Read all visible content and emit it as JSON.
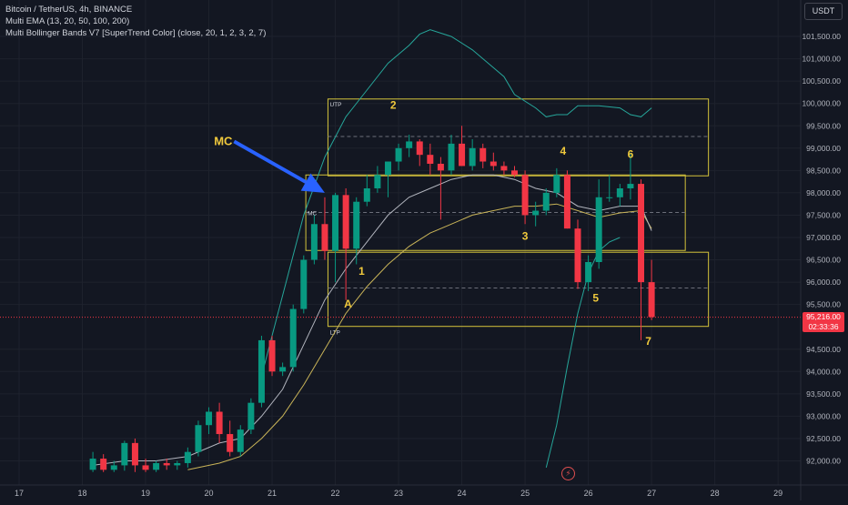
{
  "legend": {
    "symbol": "Bitcoin / TetherUS, 4h, BINANCE",
    "ema": "Multi EMA (13, 20, 50, 100, 200)",
    "bb": "Multi Bollinger Bands V7 [SuperTrend Color] (close, 20, 1, 2, 3, 2, 7)"
  },
  "currency_button": "USDT",
  "last_price": {
    "price": "95,216.00",
    "countdown": "02:33:36"
  },
  "colors": {
    "background": "#131722",
    "grid": "#1e222d",
    "up": "#089981",
    "down": "#f23645",
    "box": "#d4c33b",
    "label": "#f0c93c",
    "arrow": "#2962ff",
    "axis_text": "#b2b5be",
    "ema_fast": "#b2b5be",
    "ema_slow": "#c9b458",
    "bb": "#26a69a"
  },
  "chart_data": {
    "type": "candlestick",
    "interval": "4h",
    "x_ticks": [
      {
        "label": "17",
        "t": 0.0
      },
      {
        "label": "18",
        "t": 6.0
      },
      {
        "label": "19",
        "t": 12.0
      },
      {
        "label": "20",
        "t": 18.0
      },
      {
        "label": "21",
        "t": 24.0
      },
      {
        "label": "22",
        "t": 30.0
      },
      {
        "label": "23",
        "t": 36.0
      },
      {
        "label": "24",
        "t": 42.0
      },
      {
        "label": "25",
        "t": 48.0
      },
      {
        "label": "26",
        "t": 54.0
      },
      {
        "label": "27",
        "t": 60.0
      },
      {
        "label": "28",
        "t": 66.0
      },
      {
        "label": "29",
        "t": 72.0
      }
    ],
    "y_ticks": [
      "92,000.00",
      "92,500.00",
      "93,000.00",
      "93,500.00",
      "94,000.00",
      "94,500.00",
      "95,500.00",
      "96,000.00",
      "96,500.00",
      "97,000.00",
      "97,500.00",
      "98,000.00",
      "98,500.00",
      "99,000.00",
      "99,500.00",
      "100,000.00",
      "100,500.00",
      "101,000.00",
      "101,500.00"
    ],
    "y_range": [
      91750,
      102100
    ],
    "candles": [
      {
        "t": 7.0,
        "o": 91800,
        "h": 92200,
        "l": 91750,
        "c": 92050
      },
      {
        "t": 8.0,
        "o": 92050,
        "h": 92150,
        "l": 91750,
        "c": 91800
      },
      {
        "t": 9.0,
        "o": 91800,
        "h": 92000,
        "l": 91750,
        "c": 91900
      },
      {
        "t": 10.0,
        "o": 91900,
        "h": 92450,
        "l": 91780,
        "c": 92400
      },
      {
        "t": 11.0,
        "o": 92400,
        "h": 92500,
        "l": 91750,
        "c": 91900
      },
      {
        "t": 12.0,
        "o": 91900,
        "h": 92050,
        "l": 91750,
        "c": 91800
      },
      {
        "t": 13.0,
        "o": 91800,
        "h": 92000,
        "l": 91750,
        "c": 91950
      },
      {
        "t": 14.0,
        "o": 91950,
        "h": 92050,
        "l": 91800,
        "c": 91900
      },
      {
        "t": 15.0,
        "o": 91900,
        "h": 92000,
        "l": 91800,
        "c": 91950
      },
      {
        "t": 16.0,
        "o": 91950,
        "h": 92300,
        "l": 91850,
        "c": 92200
      },
      {
        "t": 17.0,
        "o": 92200,
        "h": 92900,
        "l": 92100,
        "c": 92800
      },
      {
        "t": 18.0,
        "o": 92800,
        "h": 93200,
        "l": 92600,
        "c": 93100
      },
      {
        "t": 19.0,
        "o": 93100,
        "h": 93300,
        "l": 92400,
        "c": 92600
      },
      {
        "t": 20.0,
        "o": 92600,
        "h": 92900,
        "l": 92100,
        "c": 92200
      },
      {
        "t": 21.0,
        "o": 92200,
        "h": 92800,
        "l": 92100,
        "c": 92700
      },
      {
        "t": 22.0,
        "o": 92700,
        "h": 93400,
        "l": 92600,
        "c": 93300
      },
      {
        "t": 23.0,
        "o": 93300,
        "h": 94800,
        "l": 93200,
        "c": 94700
      },
      {
        "t": 24.0,
        "o": 94700,
        "h": 94800,
        "l": 93900,
        "c": 94000
      },
      {
        "t": 25.0,
        "o": 94000,
        "h": 94200,
        "l": 93900,
        "c": 94100
      },
      {
        "t": 26.0,
        "o": 94100,
        "h": 95500,
        "l": 94000,
        "c": 95400
      },
      {
        "t": 27.0,
        "o": 95400,
        "h": 96600,
        "l": 95300,
        "c": 96500
      },
      {
        "t": 28.0,
        "o": 96500,
        "h": 97500,
        "l": 96400,
        "c": 97300
      },
      {
        "t": 29.0,
        "o": 97300,
        "h": 97900,
        "l": 96500,
        "c": 96700
      },
      {
        "t": 30.0,
        "o": 96700,
        "h": 98000,
        "l": 96000,
        "c": 97950
      },
      {
        "t": 31.0,
        "o": 97950,
        "h": 98100,
        "l": 95600,
        "c": 96750
      },
      {
        "t": 32.0,
        "o": 96750,
        "h": 97900,
        "l": 96400,
        "c": 97800
      },
      {
        "t": 33.0,
        "o": 97800,
        "h": 98400,
        "l": 97700,
        "c": 98100
      },
      {
        "t": 34.0,
        "o": 98100,
        "h": 98600,
        "l": 98000,
        "c": 98400
      },
      {
        "t": 35.0,
        "o": 98400,
        "h": 98700,
        "l": 97900,
        "c": 98700
      },
      {
        "t": 36.0,
        "o": 98700,
        "h": 99100,
        "l": 98500,
        "c": 99000
      },
      {
        "t": 37.0,
        "o": 99000,
        "h": 99300,
        "l": 98800,
        "c": 99150
      },
      {
        "t": 38.0,
        "o": 99150,
        "h": 99200,
        "l": 98600,
        "c": 98850
      },
      {
        "t": 39.0,
        "o": 98850,
        "h": 99100,
        "l": 98400,
        "c": 98650
      },
      {
        "t": 40.0,
        "o": 98650,
        "h": 98800,
        "l": 97400,
        "c": 98500
      },
      {
        "t": 41.0,
        "o": 98500,
        "h": 99300,
        "l": 98400,
        "c": 99100
      },
      {
        "t": 42.0,
        "o": 99100,
        "h": 99500,
        "l": 98600,
        "c": 98600
      },
      {
        "t": 43.0,
        "o": 98600,
        "h": 99200,
        "l": 98500,
        "c": 99000
      },
      {
        "t": 44.0,
        "o": 99000,
        "h": 99100,
        "l": 98550,
        "c": 98700
      },
      {
        "t": 45.0,
        "o": 98700,
        "h": 98900,
        "l": 98500,
        "c": 98600
      },
      {
        "t": 46.0,
        "o": 98600,
        "h": 98700,
        "l": 98400,
        "c": 98500
      },
      {
        "t": 47.0,
        "o": 98500,
        "h": 98600,
        "l": 98350,
        "c": 98400
      },
      {
        "t": 48.0,
        "o": 98400,
        "h": 98500,
        "l": 97300,
        "c": 97500
      },
      {
        "t": 49.0,
        "o": 97500,
        "h": 97800,
        "l": 97250,
        "c": 97600
      },
      {
        "t": 50.0,
        "o": 97600,
        "h": 98100,
        "l": 97500,
        "c": 98000
      },
      {
        "t": 51.0,
        "o": 98000,
        "h": 98550,
        "l": 97900,
        "c": 98400
      },
      {
        "t": 52.0,
        "o": 98400,
        "h": 98500,
        "l": 97200,
        "c": 97200
      },
      {
        "t": 53.0,
        "o": 97200,
        "h": 97400,
        "l": 95850,
        "c": 96000
      },
      {
        "t": 54.0,
        "o": 96000,
        "h": 96600,
        "l": 95800,
        "c": 96450
      },
      {
        "t": 55.0,
        "o": 96450,
        "h": 98300,
        "l": 96300,
        "c": 97900
      },
      {
        "t": 56.0,
        "o": 97900,
        "h": 98400,
        "l": 97800,
        "c": 97900
      },
      {
        "t": 57.0,
        "o": 97900,
        "h": 98200,
        "l": 97700,
        "c": 98100
      },
      {
        "t": 58.0,
        "o": 98100,
        "h": 98900,
        "l": 97850,
        "c": 98200
      },
      {
        "t": 59.0,
        "o": 98200,
        "h": 98300,
        "l": 94700,
        "c": 96000
      },
      {
        "t": 60.0,
        "o": 96000,
        "h": 96500,
        "l": 95150,
        "c": 95220
      }
    ],
    "ema_fast": [
      [
        7.0,
        91900
      ],
      [
        10.0,
        92000
      ],
      [
        13.0,
        92000
      ],
      [
        16.0,
        92100
      ],
      [
        19.0,
        92400
      ],
      [
        21.0,
        92500
      ],
      [
        23.0,
        93000
      ],
      [
        25.0,
        93600
      ],
      [
        27.0,
        94600
      ],
      [
        29.0,
        95600
      ],
      [
        31.0,
        96300
      ],
      [
        33.0,
        96900
      ],
      [
        35.0,
        97500
      ],
      [
        37.0,
        97900
      ],
      [
        39.0,
        98100
      ],
      [
        41.0,
        98300
      ],
      [
        43.0,
        98400
      ],
      [
        45.0,
        98400
      ],
      [
        47.0,
        98300
      ],
      [
        49.0,
        98100
      ],
      [
        51.0,
        98000
      ],
      [
        53.0,
        97700
      ],
      [
        55.0,
        97600
      ],
      [
        57.0,
        97700
      ],
      [
        59.0,
        97700
      ],
      [
        60.0,
        97150
      ]
    ],
    "ema_slow": [
      [
        16.0,
        91800
      ],
      [
        19.0,
        91950
      ],
      [
        21.0,
        92100
      ],
      [
        23.0,
        92500
      ],
      [
        25.0,
        93000
      ],
      [
        27.0,
        93700
      ],
      [
        29.0,
        94500
      ],
      [
        31.0,
        95300
      ],
      [
        33.0,
        95900
      ],
      [
        35.0,
        96400
      ],
      [
        37.0,
        96800
      ],
      [
        39.0,
        97100
      ],
      [
        41.0,
        97300
      ],
      [
        43.0,
        97500
      ],
      [
        45.0,
        97600
      ],
      [
        47.0,
        97700
      ],
      [
        49.0,
        97700
      ],
      [
        51.0,
        97750
      ],
      [
        53.0,
        97600
      ],
      [
        55.0,
        97450
      ],
      [
        57.0,
        97550
      ],
      [
        59.0,
        97600
      ],
      [
        60.0,
        97200
      ]
    ],
    "bb_upper": [
      [
        23.0,
        93900
      ],
      [
        24.0,
        94800
      ],
      [
        25.0,
        95700
      ],
      [
        27.0,
        97500
      ],
      [
        29.0,
        98800
      ],
      [
        31.0,
        99700
      ],
      [
        33.0,
        100300
      ],
      [
        35.0,
        100900
      ],
      [
        37.0,
        101300
      ],
      [
        38.0,
        101550
      ],
      [
        39.0,
        101650
      ],
      [
        41.0,
        101500
      ],
      [
        43.0,
        101200
      ],
      [
        45.0,
        100800
      ],
      [
        46.0,
        100600
      ],
      [
        47.0,
        100200
      ],
      [
        49.0,
        99900
      ],
      [
        50.0,
        99700
      ],
      [
        51.0,
        99750
      ],
      [
        52.0,
        99750
      ],
      [
        53.0,
        99950
      ],
      [
        55.0,
        99950
      ],
      [
        57.0,
        99900
      ],
      [
        58.0,
        99750
      ],
      [
        59.0,
        99700
      ],
      [
        60.0,
        99900
      ]
    ],
    "bb_lower": [
      [
        50.0,
        91850
      ],
      [
        51.0,
        92800
      ],
      [
        52.0,
        94100
      ],
      [
        53.0,
        95300
      ],
      [
        54.0,
        96200
      ],
      [
        55.0,
        96700
      ],
      [
        56.0,
        96900
      ],
      [
        57.0,
        97000
      ]
    ],
    "annotations": {
      "labels": [
        {
          "text": "2",
          "t": 35.5,
          "p": 99880
        },
        {
          "text": "1",
          "t": 32.5,
          "p": 96170
        },
        {
          "text": "A",
          "t": 31.2,
          "p": 95430
        },
        {
          "text": "3",
          "t": 48.0,
          "p": 96950
        },
        {
          "text": "4",
          "t": 51.6,
          "p": 98850
        },
        {
          "text": "5",
          "t": 54.7,
          "p": 95560
        },
        {
          "text": "6",
          "t": 58.0,
          "p": 98780
        },
        {
          "text": "7",
          "t": 59.7,
          "p": 94600
        }
      ],
      "boxes": [
        {
          "label": "UTP",
          "t1": 29.3,
          "t2": 65.4,
          "p_top": 100100,
          "p_bottom": 98380,
          "mid": 99260
        },
        {
          "label": "MC",
          "t1": 27.2,
          "t2": 63.2,
          "p_top": 98400,
          "p_bottom": 96710,
          "mid": 97560
        },
        {
          "label": "LTP",
          "t1": 29.3,
          "t2": 65.4,
          "p_top": 96670,
          "p_bottom": 95010,
          "mid": 95870
        }
      ],
      "arrow": {
        "label": "MC",
        "from_t": 20.4,
        "from_p": 99150,
        "to_t": 29.0,
        "to_p": 98000
      }
    }
  }
}
